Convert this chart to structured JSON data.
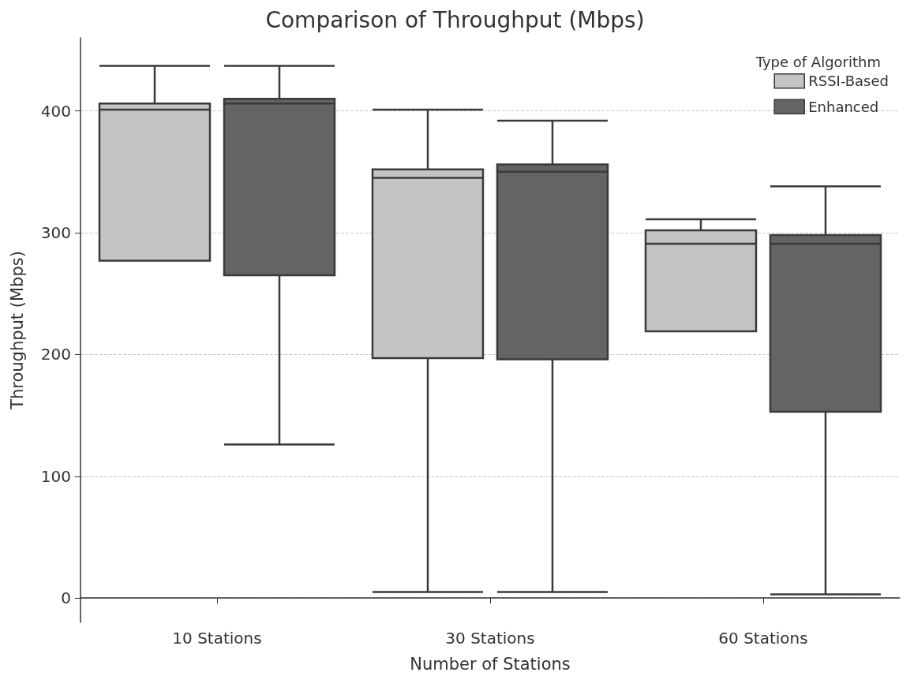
{
  "chart_data": {
    "type": "box",
    "title": "Comparison of Throughput (Mbps)",
    "xlabel": "Number of Stations",
    "ylabel": "Throughput (Mbps)",
    "legend_title": "Type of Algorithm",
    "categories": [
      "10 Stations",
      "30 Stations",
      "60 Stations"
    ],
    "series": [
      {
        "name": "RSSI-Based",
        "color": "#c4c4c4",
        "boxes": [
          {
            "low": 277,
            "q1": 277,
            "median": 401,
            "q3": 406,
            "high": 437
          },
          {
            "low": 5,
            "q1": 197,
            "median": 345,
            "q3": 352,
            "high": 401
          },
          {
            "low": 219,
            "q1": 219,
            "median": 291,
            "q3": 302,
            "high": 311
          }
        ]
      },
      {
        "name": "Enhanced",
        "color": "#646464",
        "boxes": [
          {
            "low": 126,
            "q1": 265,
            "median": 406,
            "q3": 410,
            "high": 437
          },
          {
            "low": 5,
            "q1": 196,
            "median": 350,
            "q3": 356,
            "high": 392
          },
          {
            "low": 3,
            "q1": 153,
            "median": 291,
            "q3": 298,
            "high": 338
          }
        ]
      }
    ],
    "ylim": [
      -20,
      460
    ],
    "yticks": [
      0,
      100,
      200,
      300,
      400
    ],
    "grid": "y",
    "legend": "top right"
  }
}
